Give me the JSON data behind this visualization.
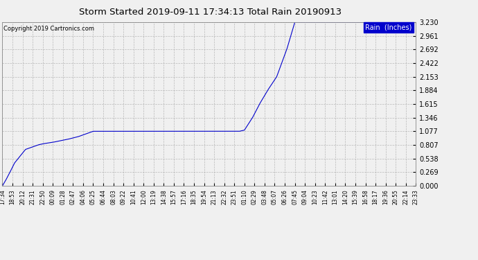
{
  "title": "Storm Started 2019-09-11 17:34:13 Total Rain 20190913",
  "copyright_text": "Copyright 2019 Cartronics.com",
  "legend_label": "Rain  (Inches)",
  "legend_bg_color": "#0000cc",
  "legend_text_color": "#ffffff",
  "line_color": "#0000cc",
  "bg_color": "#f0f0f0",
  "plot_bg_color": "#f0f0f0",
  "grid_color": "#aaaaaa",
  "yticks": [
    0.0,
    0.269,
    0.538,
    0.807,
    1.077,
    1.346,
    1.615,
    1.884,
    2.153,
    2.422,
    2.692,
    2.961,
    3.23
  ],
  "ylim": [
    0.0,
    3.23
  ],
  "xtick_labels": [
    "17:34",
    "18:53",
    "20:12",
    "21:31",
    "22:50",
    "00:09",
    "01:28",
    "02:47",
    "04:06",
    "05:25",
    "06:44",
    "08:03",
    "09:22",
    "10:41",
    "12:00",
    "13:19",
    "14:38",
    "15:57",
    "17:16",
    "18:35",
    "19:54",
    "21:13",
    "22:32",
    "23:51",
    "01:10",
    "02:29",
    "03:48",
    "05:07",
    "06:26",
    "07:45",
    "09:04",
    "10:23",
    "11:42",
    "13:01",
    "14:20",
    "15:39",
    "16:58",
    "18:17",
    "19:36",
    "20:55",
    "22:14",
    "23:33"
  ],
  "key_x": [
    0,
    0.3,
    0.7,
    1.2,
    1.8,
    2.3,
    3.0,
    3.5,
    4.0,
    5.0,
    6.5,
    7.5,
    8.5,
    9.0,
    23.0,
    23.5,
    24.0,
    24.8,
    25.5,
    26.3,
    27.2,
    28.2,
    29.0,
    41.0
  ],
  "key_y": [
    0.0,
    0.1,
    0.25,
    0.45,
    0.6,
    0.72,
    0.77,
    0.807,
    0.83,
    0.86,
    0.92,
    0.97,
    1.04,
    1.077,
    1.077,
    1.077,
    1.1,
    1.346,
    1.615,
    1.884,
    2.153,
    2.692,
    3.23,
    3.23
  ]
}
